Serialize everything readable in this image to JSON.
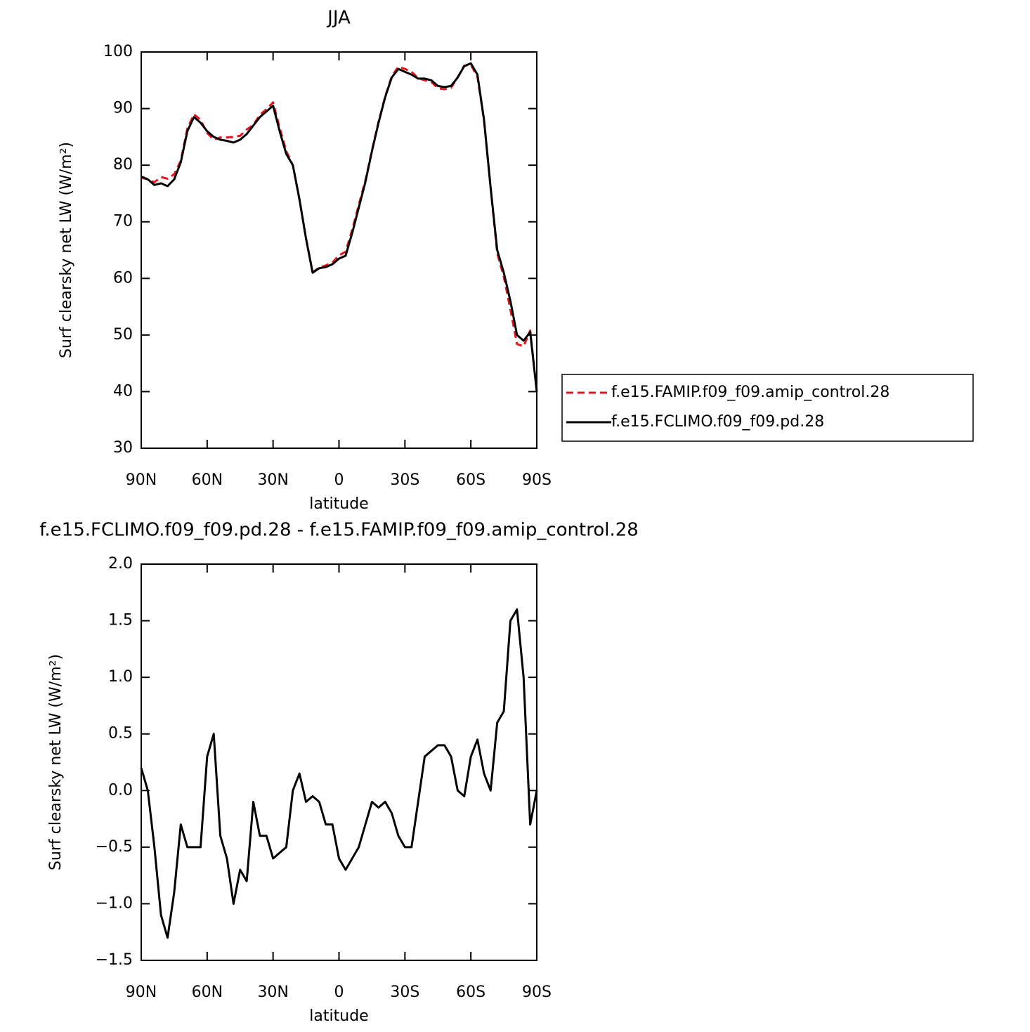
{
  "chart_data": [
    {
      "type": "line",
      "title": "JJA",
      "xlabel": "latitude",
      "ylabel": "Surf clearsky net LW (W/m²)",
      "x": [
        90,
        87,
        84,
        81,
        78,
        75,
        72,
        69,
        66,
        63,
        60,
        57,
        54,
        51,
        48,
        45,
        42,
        39,
        36,
        33,
        30,
        27,
        24,
        21,
        18,
        15,
        12,
        9,
        6,
        3,
        0,
        -3,
        -6,
        -9,
        -12,
        -15,
        -18,
        -21,
        -24,
        -27,
        -30,
        -33,
        -36,
        -39,
        -42,
        -45,
        -48,
        -51,
        -54,
        -57,
        -60,
        -63,
        -66,
        -69,
        -72,
        -75,
        -78,
        -81,
        -84,
        -87,
        -90
      ],
      "xlim": [
        90,
        -90
      ],
      "xticks": [
        {
          "value": 90,
          "label": "90N"
        },
        {
          "value": 60,
          "label": "60N"
        },
        {
          "value": 30,
          "label": "30N"
        },
        0,
        {
          "value": -30,
          "label": "30S"
        },
        {
          "value": -60,
          "label": "60S"
        },
        {
          "value": -90,
          "label": "90S"
        }
      ],
      "ylim": [
        30,
        100
      ],
      "yticks": [
        30,
        40,
        50,
        60,
        70,
        80,
        90,
        100
      ],
      "legend": "right",
      "series": [
        {
          "name": "f.e15.FAMIP.f09_f09.amip_control.28",
          "color": "#e8141b",
          "style": "dashed",
          "values": [
            77.8,
            77.5,
            77.0,
            77.9,
            77.6,
            78.4,
            80.8,
            86.5,
            89.0,
            88.0,
            85.7,
            84.5,
            84.9,
            84.9,
            85.0,
            85.2,
            86.3,
            87.1,
            88.9,
            89.9,
            91.1,
            86.6,
            82.5,
            80.0,
            73.9,
            67.1,
            61.1,
            61.9,
            62.3,
            62.8,
            64.1,
            64.7,
            68.6,
            73.0,
            77.3,
            82.6,
            87.7,
            92.1,
            95.7,
            97.4,
            97.0,
            96.5,
            95.4,
            95.0,
            94.7,
            93.6,
            93.4,
            93.7,
            95.5,
            97.6,
            97.7,
            95.6,
            87.9,
            76.0,
            64.4,
            60.3,
            54.5,
            48.4,
            48.0,
            50.8,
            40.0
          ]
        },
        {
          "name": "f.e15.FCLIMO.f09_f09.pd.28",
          "color": "#000000",
          "style": "solid",
          "values": [
            78.0,
            77.5,
            76.5,
            76.8,
            76.3,
            77.5,
            80.5,
            86.0,
            88.5,
            87.5,
            86.0,
            85.0,
            84.5,
            84.3,
            84.0,
            84.5,
            85.5,
            87.0,
            88.5,
            89.5,
            90.5,
            86.0,
            82.0,
            80.0,
            74.0,
            67.0,
            61.0,
            61.8,
            62.0,
            62.5,
            63.5,
            64.0,
            68.0,
            72.5,
            77.0,
            82.5,
            87.5,
            92.0,
            95.5,
            97.0,
            96.5,
            96.0,
            95.3,
            95.3,
            95.0,
            94.0,
            93.8,
            94.0,
            95.5,
            97.5,
            98.0,
            96.0,
            88.0,
            76.0,
            65.0,
            61.0,
            56.0,
            50.0,
            49.0,
            50.5,
            40.0
          ]
        }
      ]
    },
    {
      "type": "line",
      "title": "f.e15.FCLIMO.f09_f09.pd.28 - f.e15.FAMIP.f09_f09.amip_control.28",
      "xlabel": "latitude",
      "ylabel": "Surf clearsky net LW (W/m²)",
      "x": [
        90,
        87,
        84,
        81,
        78,
        75,
        72,
        69,
        66,
        63,
        60,
        57,
        54,
        51,
        48,
        45,
        42,
        39,
        36,
        33,
        30,
        27,
        24,
        21,
        18,
        15,
        12,
        9,
        6,
        3,
        0,
        -3,
        -6,
        -9,
        -12,
        -15,
        -18,
        -21,
        -24,
        -27,
        -30,
        -33,
        -36,
        -39,
        -42,
        -45,
        -48,
        -51,
        -54,
        -57,
        -60,
        -63,
        -66,
        -69,
        -72,
        -75,
        -78,
        -81,
        -84,
        -87,
        -90
      ],
      "xlim": [
        90,
        -90
      ],
      "xticks": [
        {
          "value": 90,
          "label": "90N"
        },
        {
          "value": 60,
          "label": "60N"
        },
        {
          "value": 30,
          "label": "30N"
        },
        0,
        {
          "value": -30,
          "label": "30S"
        },
        {
          "value": -60,
          "label": "60S"
        },
        {
          "value": -90,
          "label": "90S"
        }
      ],
      "ylim": [
        -1.5,
        2.0
      ],
      "yticks": [
        {
          "value": -1.5,
          "label": "−1.5"
        },
        {
          "value": -1.0,
          "label": "−1.0"
        },
        {
          "value": -0.5,
          "label": "−0.5"
        },
        {
          "value": 0,
          "label": "0.0"
        },
        0.5,
        {
          "value": 1.0,
          "label": "1.0"
        },
        1.5,
        {
          "value": 2.0,
          "label": "2.0"
        }
      ],
      "series": [
        {
          "color": "#000000",
          "style": "solid",
          "values": [
            0.2,
            0.0,
            -0.5,
            -1.1,
            -1.3,
            -0.9,
            -0.3,
            -0.5,
            -0.5,
            -0.5,
            0.3,
            0.5,
            -0.4,
            -0.6,
            -1.0,
            -0.7,
            -0.8,
            -0.1,
            -0.4,
            -0.4,
            -0.6,
            -0.55,
            -0.5,
            0.0,
            0.15,
            -0.1,
            -0.05,
            -0.1,
            -0.3,
            -0.3,
            -0.6,
            -0.7,
            -0.6,
            -0.5,
            -0.3,
            -0.1,
            -0.15,
            -0.1,
            -0.2,
            -0.4,
            -0.5,
            -0.5,
            -0.1,
            0.3,
            0.35,
            0.4,
            0.4,
            0.3,
            0.0,
            -0.05,
            0.3,
            0.45,
            0.15,
            0.0,
            0.6,
            0.7,
            1.5,
            1.6,
            1.0,
            -0.3,
            0.0
          ]
        }
      ]
    }
  ]
}
